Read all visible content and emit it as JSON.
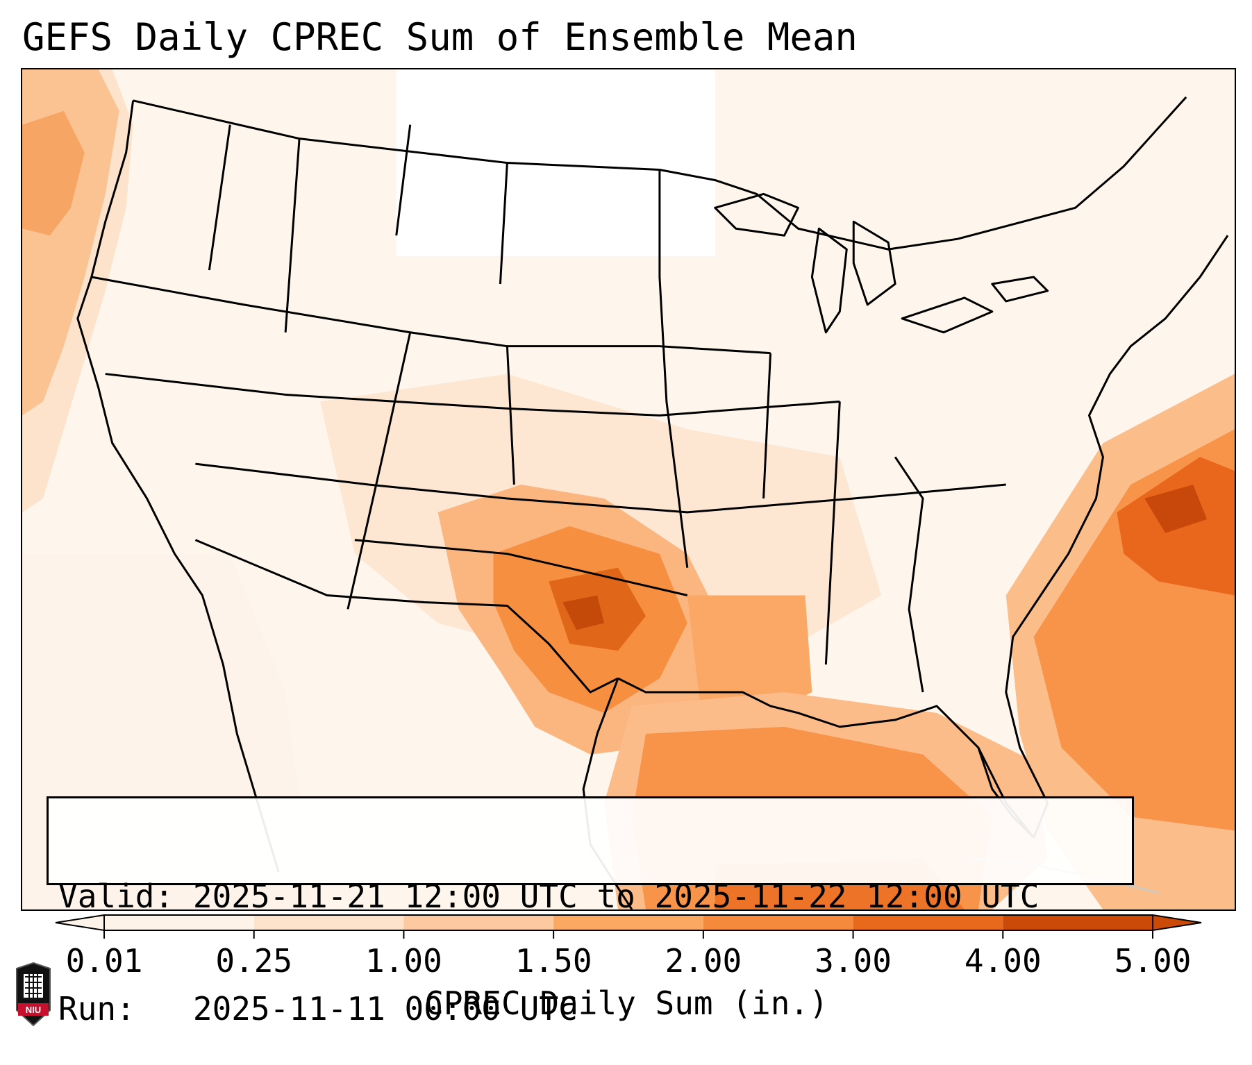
{
  "title": "GEFS Daily CPREC Sum of Ensemble Mean",
  "info": {
    "valid_label": "Valid:",
    "valid_value": "2025-11-21 12:00 UTC to 2025-11-22 12:00 UTC",
    "run_label": "Run:",
    "run_value": "2025-11-11 00:00 UTC"
  },
  "colorbar": {
    "title": "CPREC Daily Sum (in.)",
    "ticks": [
      "0.01",
      "0.25",
      "1.00",
      "1.50",
      "2.00",
      "3.00",
      "4.00",
      "5.00"
    ],
    "colors": [
      "#fef3e8",
      "#fde3cb",
      "#fdc9a0",
      "#fba862",
      "#f58a3c",
      "#e8691c",
      "#cc4a08"
    ],
    "extend": "both"
  },
  "logo": {
    "text": "NIU",
    "color": "#c8102e"
  },
  "map": {
    "projection": "Lambert conformal, CONUS",
    "precip_max_regions": [
      "Western Atlantic off Mid-Atlantic coast",
      "Red River valley TX/OK",
      "Gulf of Mexico",
      "Pacific NW coast"
    ]
  }
}
